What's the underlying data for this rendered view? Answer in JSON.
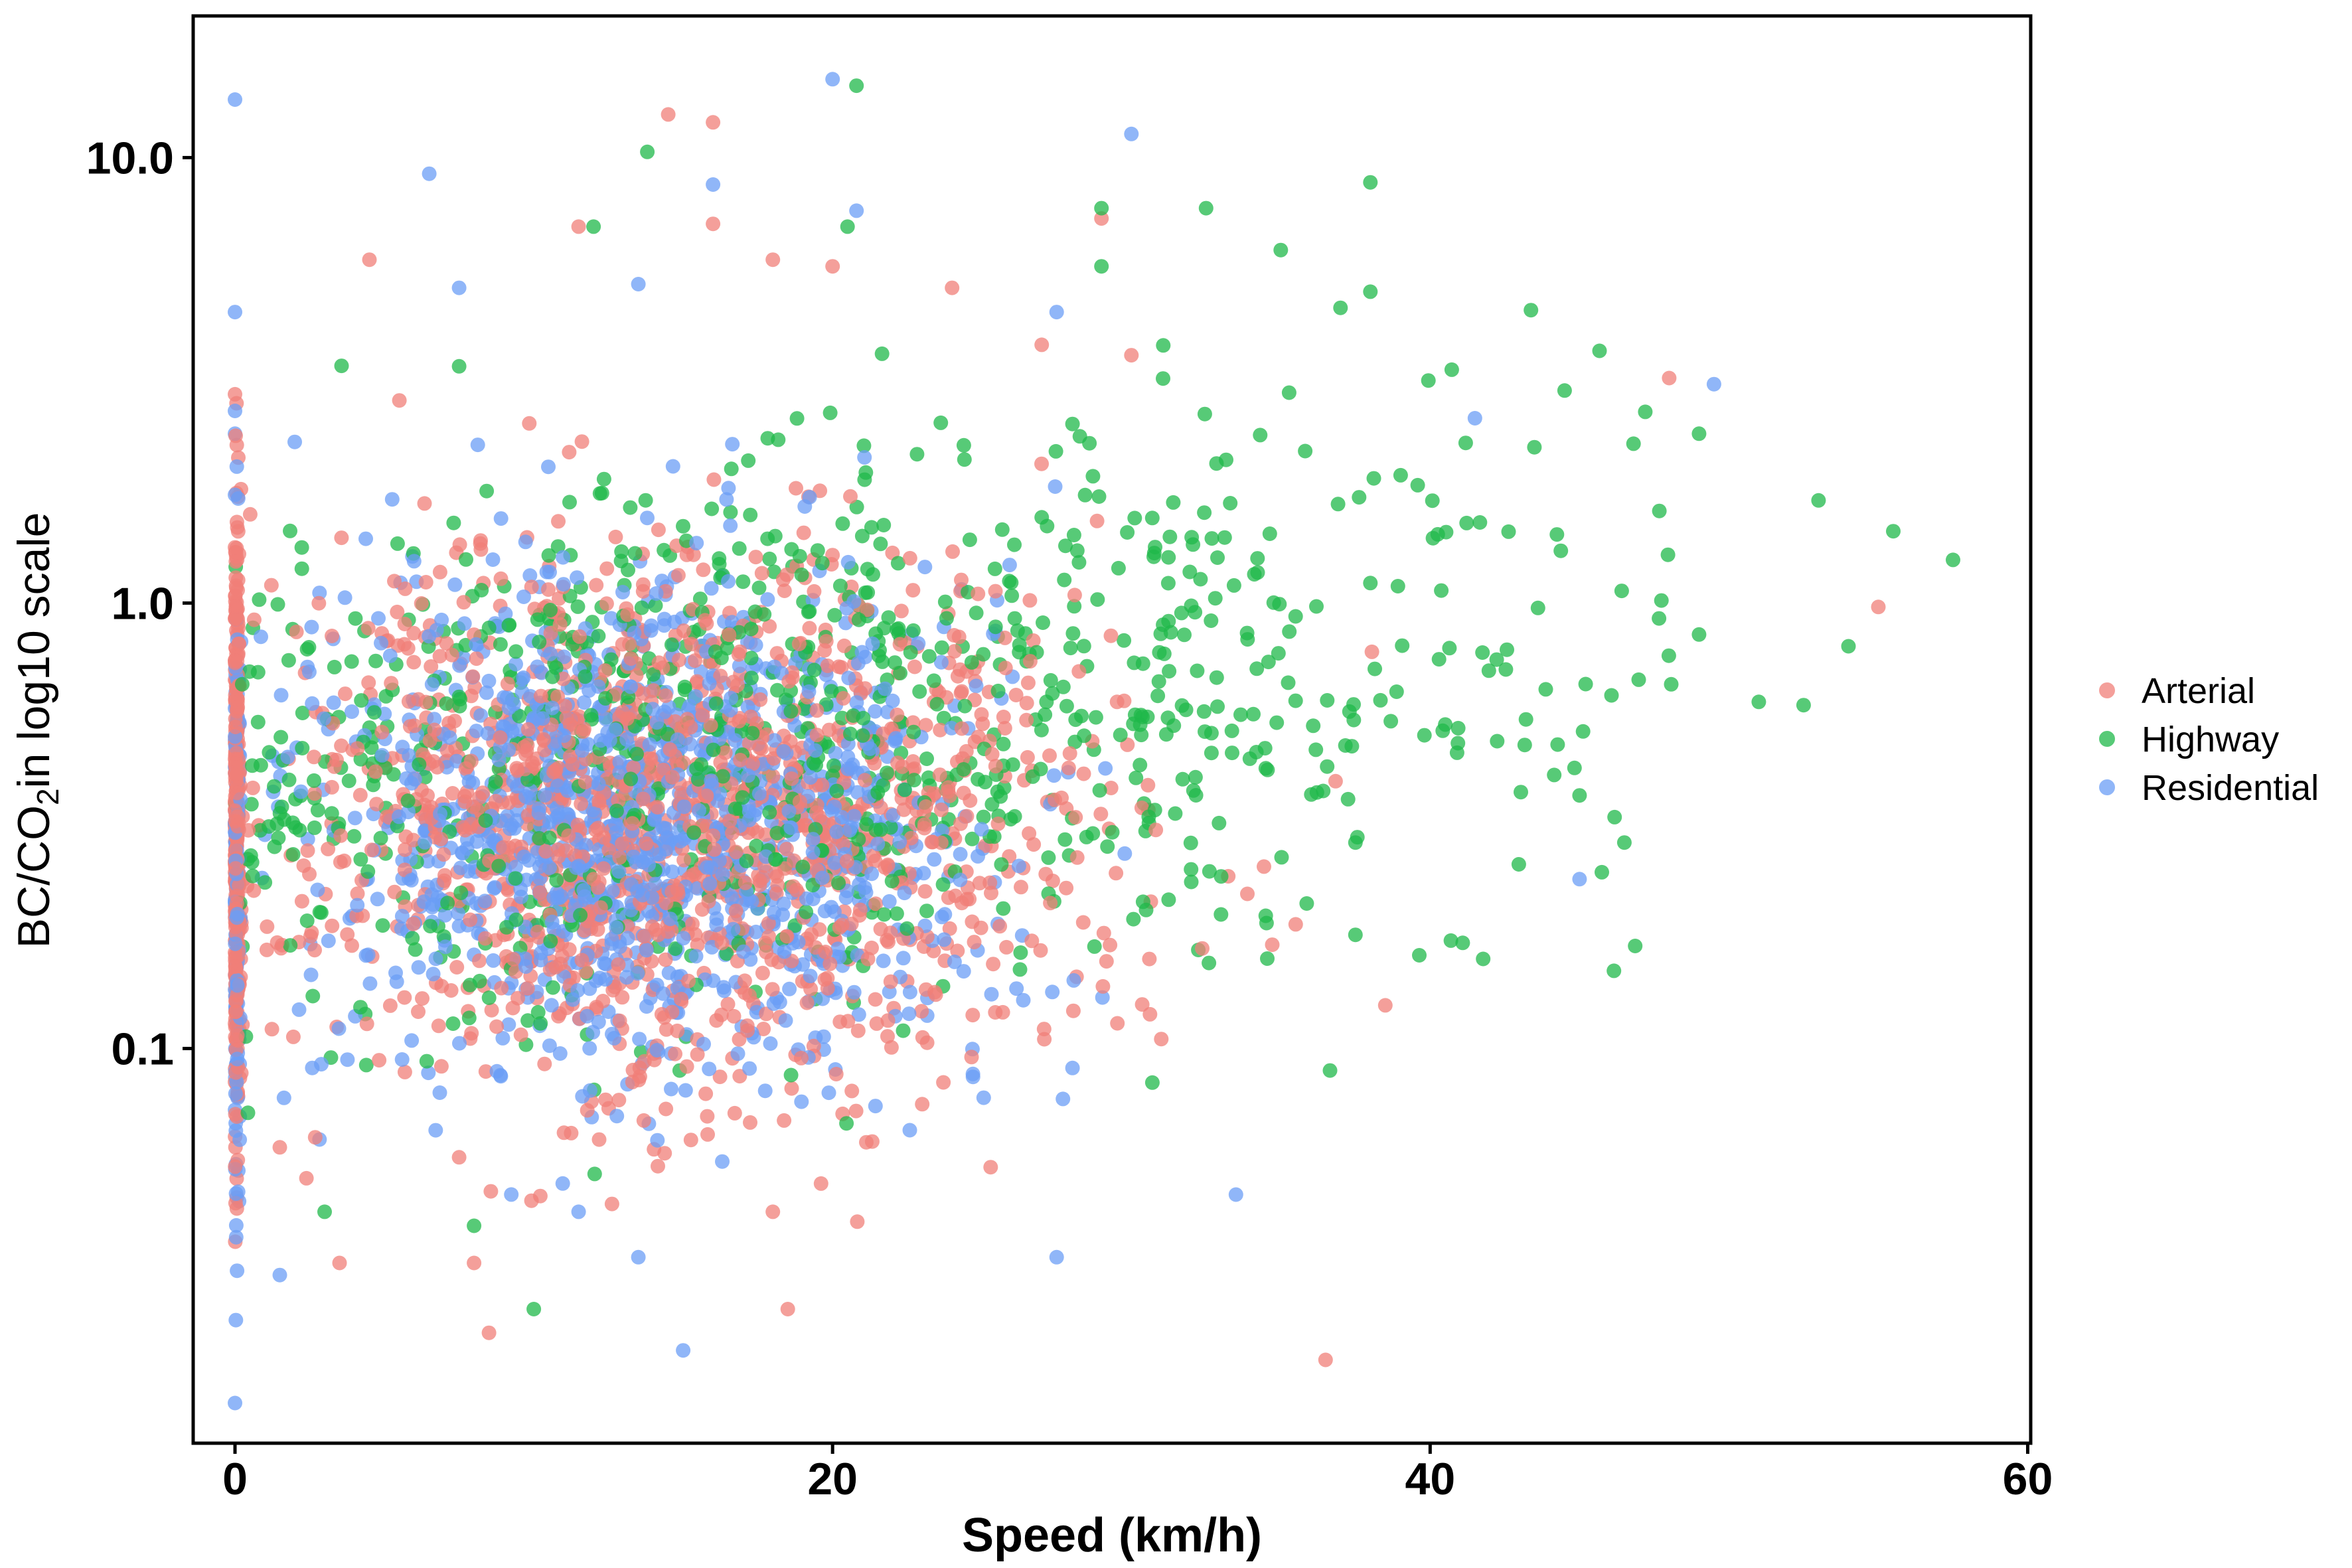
{
  "chart_data": {
    "type": "scatter",
    "title": "",
    "xlabel": "Speed (km/h)",
    "ylabel": {
      "prefix": "BC/CO",
      "subscript": "2",
      "suffix": "in log10 scale"
    },
    "xlim": [
      -1.4,
      60.1
    ],
    "ylim": [
      0.013,
      20.8
    ],
    "y_scale": "log10",
    "x_ticks": [
      0,
      20,
      40,
      60
    ],
    "x_tick_labels": [
      "0",
      "20",
      "40",
      "60"
    ],
    "y_ticks": [
      0.1,
      1.0,
      10.0
    ],
    "y_tick_labels": [
      "0.1",
      "1.0",
      "10.0"
    ],
    "grid": false,
    "legend": {
      "position": "right",
      "entries": [
        "Arterial",
        "Highway",
        "Residential"
      ]
    },
    "colors": {
      "Arterial": "#F07F78",
      "Highway": "#1FB84A",
      "Residential": "#6B9EF5"
    },
    "note": "dense cloud of several thousand points; outliers listed explicitly",
    "series": [
      {
        "name": "Arterial",
        "points": [
          [
            14.5,
            12.5
          ],
          [
            16,
            12
          ],
          [
            4.5,
            5.9
          ],
          [
            11.5,
            7.0
          ],
          [
            16,
            7.1
          ],
          [
            18,
            5.9
          ],
          [
            20,
            5.7
          ],
          [
            24,
            5.1
          ],
          [
            29,
            7.3
          ],
          [
            27,
            3.8
          ],
          [
            30,
            3.6
          ],
          [
            48,
            3.2
          ],
          [
            55,
            0.98
          ],
          [
            38.5,
            0.125
          ],
          [
            36.5,
            0.02
          ],
          [
            18.5,
            0.026
          ],
          [
            8.5,
            0.023
          ],
          [
            3.5,
            0.033
          ],
          [
            8,
            0.033
          ],
          [
            18,
            0.043
          ],
          [
            23,
            0.075
          ],
          [
            35.5,
            0.19
          ],
          [
            31,
            0.105
          ],
          [
            5.5,
            2.85
          ],
          [
            7.5,
            0.057
          ],
          [
            1.5,
            0.06
          ]
        ]
      },
      {
        "name": "Highway",
        "points": [
          [
            20.8,
            14.5
          ],
          [
            13.8,
            10.3
          ],
          [
            20.5,
            7
          ],
          [
            12,
            7
          ],
          [
            29,
            7.7
          ],
          [
            32.5,
            7.7
          ],
          [
            35,
            6.2
          ],
          [
            38,
            8.8
          ],
          [
            38,
            5
          ],
          [
            37,
            4.6
          ],
          [
            29,
            5.7
          ],
          [
            44.5,
            3
          ],
          [
            49,
            2.4
          ],
          [
            53,
            1.7
          ],
          [
            55.5,
            1.45
          ],
          [
            57.5,
            1.25
          ],
          [
            51,
            0.6
          ],
          [
            52.5,
            0.59
          ],
          [
            54,
            0.8
          ],
          [
            49,
            0.85
          ],
          [
            46.5,
            0.29
          ],
          [
            45,
            0.37
          ],
          [
            37.5,
            0.29
          ],
          [
            37.5,
            0.18
          ],
          [
            33,
            0.2
          ],
          [
            10,
            0.026
          ],
          [
            8,
            0.04
          ],
          [
            3,
            0.043
          ],
          [
            7.5,
            3.4
          ]
        ]
      },
      {
        "name": "Residential",
        "points": [
          [
            20,
            15
          ],
          [
            30,
            11.3
          ],
          [
            0,
            13.5
          ],
          [
            6.5,
            9.2
          ],
          [
            16,
            8.7
          ],
          [
            20.8,
            7.6
          ],
          [
            7.5,
            5.1
          ],
          [
            13.5,
            5.2
          ],
          [
            27.5,
            4.5
          ],
          [
            0,
            4.5
          ],
          [
            0,
            2.7
          ],
          [
            0,
            2.4
          ],
          [
            2,
            2.3
          ],
          [
            0,
            1.75
          ],
          [
            49.5,
            3.1
          ],
          [
            41.5,
            2.6
          ],
          [
            45,
            0.24
          ],
          [
            33.5,
            0.047
          ],
          [
            27.5,
            0.034
          ],
          [
            15,
            0.021
          ],
          [
            0,
            0.016
          ],
          [
            13.5,
            0.034
          ],
          [
            1.5,
            0.031
          ],
          [
            11.5,
            0.043
          ]
        ]
      }
    ]
  }
}
